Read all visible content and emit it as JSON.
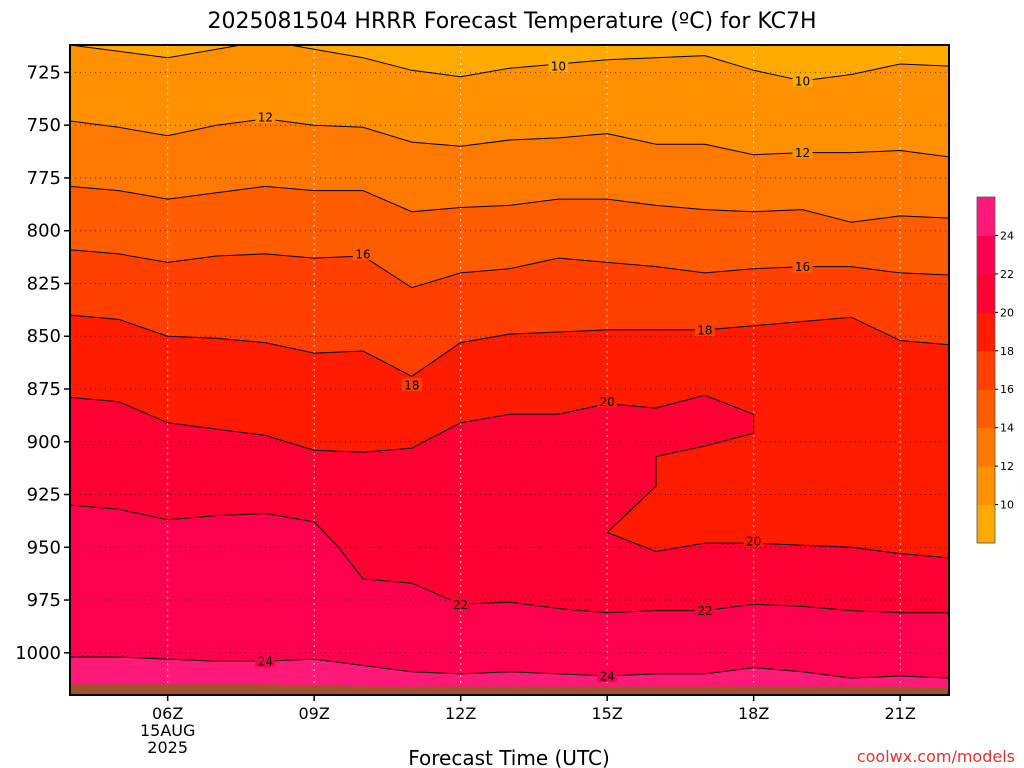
{
  "chart_data": {
    "type": "contour",
    "title": "2025081504 HRRR Forecast Temperature (ºC) for KC7H",
    "xlabel": "Forecast Time (UTC)",
    "credit": "coolwx.com/models",
    "x_ticks": [
      {
        "hour": 6,
        "lines": [
          "06Z",
          "15AUG",
          "2025"
        ]
      },
      {
        "hour": 9,
        "lines": [
          "09Z"
        ]
      },
      {
        "hour": 12,
        "lines": [
          "12Z"
        ]
      },
      {
        "hour": 15,
        "lines": [
          "15Z"
        ]
      },
      {
        "hour": 18,
        "lines": [
          "18Z"
        ]
      },
      {
        "hour": 21,
        "lines": [
          "21Z"
        ]
      }
    ],
    "xlim": [
      4,
      22
    ],
    "y_ticks": [
      725,
      750,
      775,
      800,
      825,
      850,
      875,
      900,
      925,
      950,
      975,
      1000
    ],
    "ylim": [
      712,
      1020
    ],
    "y_reversed": true,
    "y_unit": "hPa",
    "surface_pressure": [
      1015,
      1015,
      1015,
      1015,
      1015,
      1015.5,
      1016,
      1016,
      1016,
      1016,
      1016,
      1016,
      1016,
      1016,
      1016,
      1016,
      1016,
      1016,
      1016.5
    ],
    "colorbar": {
      "levels": [
        8,
        10,
        12,
        14,
        16,
        18,
        20,
        22,
        24,
        26
      ],
      "tick_labels": [
        "10",
        "12",
        "14",
        "16",
        "18",
        "20",
        "22",
        "24"
      ],
      "colors": [
        "#ffaa00",
        "#ff9000",
        "#ff7800",
        "#ff5c00",
        "#ff4000",
        "#ff1c00",
        "#ff0033",
        "#ff004f",
        "#ff1a7a"
      ]
    },
    "isotherms": [
      {
        "value": 10,
        "points": [
          [
            4,
            712
          ],
          [
            6,
            718
          ],
          [
            8,
            710
          ],
          [
            10,
            718
          ],
          [
            11,
            724
          ],
          [
            12,
            727
          ],
          [
            13,
            723
          ],
          [
            15,
            719
          ],
          [
            17,
            717
          ],
          [
            18,
            724
          ],
          [
            19,
            729
          ],
          [
            20,
            726
          ],
          [
            21,
            721
          ],
          [
            22,
            722
          ]
        ]
      },
      {
        "value": 12,
        "points": [
          [
            4,
            748
          ],
          [
            5,
            751
          ],
          [
            6,
            755
          ],
          [
            7,
            750
          ],
          [
            8,
            747
          ],
          [
            9,
            750
          ],
          [
            10,
            751
          ],
          [
            11,
            758
          ],
          [
            12,
            760
          ],
          [
            13,
            757
          ],
          [
            14,
            756
          ],
          [
            15,
            754
          ],
          [
            16,
            759
          ],
          [
            17,
            759
          ],
          [
            18,
            764
          ],
          [
            19,
            763
          ],
          [
            20,
            763
          ],
          [
            21,
            762
          ],
          [
            22,
            765
          ]
        ]
      },
      {
        "value": 14,
        "points": [
          [
            4,
            779
          ],
          [
            5,
            781
          ],
          [
            6,
            785
          ],
          [
            7,
            782
          ],
          [
            8,
            779
          ],
          [
            9,
            781
          ],
          [
            10,
            781
          ],
          [
            11,
            791
          ],
          [
            12,
            789
          ],
          [
            13,
            788
          ],
          [
            14,
            785
          ],
          [
            15,
            785
          ],
          [
            16,
            788
          ],
          [
            17,
            790
          ],
          [
            18,
            791
          ],
          [
            19,
            790
          ],
          [
            20,
            796
          ],
          [
            21,
            793
          ],
          [
            22,
            794
          ]
        ]
      },
      {
        "value": 16,
        "points": [
          [
            4,
            809
          ],
          [
            5,
            811
          ],
          [
            6,
            815
          ],
          [
            7,
            812
          ],
          [
            8,
            811
          ],
          [
            9,
            813
          ],
          [
            10,
            812
          ],
          [
            11,
            827
          ],
          [
            12,
            820
          ],
          [
            13,
            818
          ],
          [
            14,
            813
          ],
          [
            15,
            815
          ],
          [
            16,
            817
          ],
          [
            17,
            820
          ],
          [
            18,
            818
          ],
          [
            19,
            817
          ],
          [
            20,
            817
          ],
          [
            21,
            820
          ],
          [
            22,
            821
          ]
        ]
      },
      {
        "value": 18,
        "points": [
          [
            4,
            840
          ],
          [
            5,
            842
          ],
          [
            6,
            850
          ],
          [
            7,
            851
          ],
          [
            8,
            853
          ],
          [
            9,
            858
          ],
          [
            10,
            857
          ],
          [
            11,
            869
          ],
          [
            12,
            853
          ],
          [
            13,
            849
          ],
          [
            14,
            848
          ],
          [
            15,
            847
          ],
          [
            16,
            847
          ],
          [
            17,
            847
          ],
          [
            18,
            845
          ],
          [
            19,
            843
          ],
          [
            20,
            841
          ],
          [
            21,
            852
          ],
          [
            22,
            854
          ]
        ]
      },
      {
        "value": 20,
        "points": [
          [
            4,
            879
          ],
          [
            5,
            881
          ],
          [
            6,
            891
          ],
          [
            7,
            894
          ],
          [
            8,
            897
          ],
          [
            9,
            904
          ],
          [
            10,
            905
          ],
          [
            11,
            903
          ],
          [
            12,
            891
          ],
          [
            13,
            887
          ],
          [
            14,
            887
          ],
          [
            15,
            882
          ],
          [
            16,
            884
          ],
          [
            17,
            878
          ],
          [
            18,
            887
          ],
          [
            18,
            896
          ],
          [
            17,
            902
          ],
          [
            16,
            907
          ],
          [
            16,
            921
          ],
          [
            15,
            943
          ],
          [
            16,
            952
          ],
          [
            17,
            948
          ],
          [
            18,
            948
          ],
          [
            19,
            949
          ],
          [
            20,
            950
          ],
          [
            21,
            953
          ],
          [
            22,
            955
          ]
        ]
      },
      {
        "value": 22,
        "points": [
          [
            4,
            930
          ],
          [
            5,
            932
          ],
          [
            6,
            937
          ],
          [
            7,
            935
          ],
          [
            8,
            934
          ],
          [
            9,
            938
          ],
          [
            9.5,
            950
          ],
          [
            10,
            965
          ],
          [
            11,
            967
          ],
          [
            12,
            977
          ],
          [
            13,
            976
          ],
          [
            14,
            979
          ],
          [
            15,
            981
          ],
          [
            16,
            980
          ],
          [
            17,
            980
          ],
          [
            18,
            977
          ],
          [
            19,
            978
          ],
          [
            20,
            980
          ],
          [
            21,
            981
          ],
          [
            22,
            981
          ]
        ]
      },
      {
        "value": 24,
        "points": [
          [
            4,
            1002
          ],
          [
            5,
            1002
          ],
          [
            6,
            1003
          ],
          [
            7,
            1004
          ],
          [
            8,
            1004
          ],
          [
            9,
            1003
          ],
          [
            10,
            1006
          ],
          [
            11,
            1009
          ],
          [
            12,
            1010
          ],
          [
            13,
            1009
          ],
          [
            14,
            1010
          ],
          [
            15,
            1011
          ],
          [
            16,
            1010
          ],
          [
            17,
            1010
          ],
          [
            18,
            1007
          ],
          [
            19,
            1009
          ],
          [
            20,
            1012
          ],
          [
            21,
            1011
          ],
          [
            22,
            1012
          ]
        ]
      }
    ],
    "contour_labels": [
      {
        "text": "10",
        "hour": 14,
        "p": 722
      },
      {
        "text": "10",
        "hour": 19,
        "p": 729
      },
      {
        "text": "12",
        "hour": 8,
        "p": 746
      },
      {
        "text": "12",
        "hour": 19,
        "p": 763
      },
      {
        "text": "16",
        "hour": 10,
        "p": 811
      },
      {
        "text": "16",
        "hour": 19,
        "p": 817
      },
      {
        "text": "18",
        "hour": 11,
        "p": 873
      },
      {
        "text": "18",
        "hour": 17,
        "p": 847
      },
      {
        "text": "20",
        "hour": 15,
        "p": 881
      },
      {
        "text": "20",
        "hour": 18,
        "p": 947
      },
      {
        "text": "22",
        "hour": 12,
        "p": 977
      },
      {
        "text": "22",
        "hour": 17,
        "p": 980
      },
      {
        "text": "24",
        "hour": 8,
        "p": 1004
      },
      {
        "text": "24",
        "hour": 15,
        "p": 1011
      }
    ]
  }
}
